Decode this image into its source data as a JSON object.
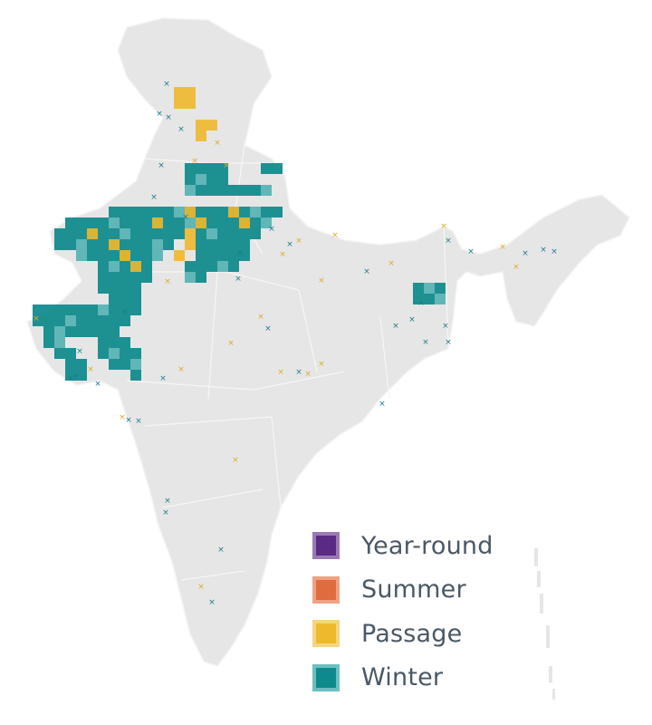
{
  "map": {
    "region": "India",
    "fill_color": "#e6e6e6",
    "border_color": "#ffffff"
  },
  "occurrence_marker": {
    "symbol": "×"
  },
  "legend": {
    "items": [
      {
        "label": "Year-round",
        "color": "#5a2a84",
        "border": "#9b7ab4"
      },
      {
        "label": "Summer",
        "color": "#e06b3f",
        "border": "#efa184"
      },
      {
        "label": "Passage",
        "color": "#efb92d",
        "border": "#f5d57f"
      },
      {
        "label": "Winter",
        "color": "#0e8a8c",
        "border": "#6bbfc1"
      }
    ]
  }
}
